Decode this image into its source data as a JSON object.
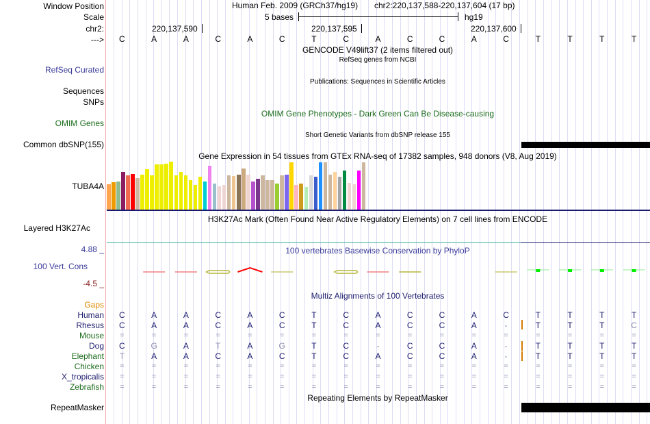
{
  "header": {
    "window_position_label": "Window Position",
    "scale_label": "Scale",
    "chrom_label": "chr2:",
    "strand_label": "--->",
    "assembly_text": "Human Feb. 2009 (GRCh37/hg19)",
    "position_text": "chr2:220,137,588-220,137,604 (17 bp)",
    "scale_text": "5 bases",
    "scale_db": "hg19",
    "coord_ticks": [
      "220,137,590",
      "220,137,595",
      "220,137,600"
    ]
  },
  "sequence": [
    "C",
    "A",
    "A",
    "C",
    "A",
    "C",
    "T",
    "C",
    "A",
    "C",
    "C",
    "A",
    "C",
    "T",
    "T",
    "T",
    "T"
  ],
  "tracks": {
    "gencode_title": "GENCODE V49lift37 (2 items filtered out)",
    "refseq_title": "RefSeq genes from NCBI",
    "refseq_label": "RefSeq Curated",
    "publications_title": "Publications: Sequences in Scientific Articles",
    "sequences_label": "Sequences",
    "snps_label": "SNPs",
    "omim_title": "OMIM Gene Phenotypes - Dark Green Can Be Disease-causing",
    "omim_label": "OMIM Genes",
    "dbsnp_title": "Short Genetic Variants from dbSNP release 155",
    "dbsnp_label": "Common dbSNP(155)",
    "gtex_title": "Gene Expression in 54 tissues from GTEx RNA-seq of 17382 samples, 948 donors (V8, Aug 2019)",
    "gtex_label": "TUBA4A",
    "h3k27ac_title": "H3K27Ac Mark (Often Found Near Active Regulatory Elements) on 7 cell lines from ENCODE",
    "h3k27ac_label": "Layered H3K27Ac",
    "phylop_title": "100 vertebrates Basewise Conservation by PhyloP",
    "phylop_label": "100 Vert. Cons",
    "phylop_max": "4.88 _",
    "phylop_min": "-4.5 _",
    "multiz_title": "Multiz Alignments of 100 Vertebrates",
    "gaps_label": "Gaps",
    "repeat_title": "Repeating Elements by RepeatMasker",
    "repeat_label": "RepeatMasker"
  },
  "gtex_expression": {
    "relative_heights": [
      0.53,
      0.57,
      0.59,
      0.78,
      0.71,
      0.74,
      0.66,
      0.73,
      0.85,
      0.71,
      0.95,
      0.94,
      0.96,
      1.0,
      0.71,
      0.78,
      0.72,
      0.61,
      0.51,
      0.68,
      0.59,
      0.92,
      0.54,
      0.48,
      0.51,
      0.71,
      0.7,
      0.73,
      0.86,
      0.73,
      0.58,
      0.65,
      0.71,
      0.61,
      0.62,
      0.55,
      0.71,
      0.73,
      0.99,
      0.52,
      0.55,
      0.47,
      0.71,
      0.68,
      0.99,
      0.99,
      0.73,
      0.78,
      0.68,
      0.82,
      0.56,
      0.53,
      0.81,
      0.99
    ],
    "colors": [
      "#ffa54f",
      "#ee9a00",
      "#8fbc8f",
      "#8b1c62",
      "#ee6a50",
      "#ff0000",
      "#cdb79e",
      "#eeee00",
      "#eeee00",
      "#eeee00",
      "#eeee00",
      "#eeee00",
      "#eeee00",
      "#eeee00",
      "#eeee00",
      "#eeee00",
      "#eeee00",
      "#eeee00",
      "#eeee00",
      "#eeee00",
      "#00ced1",
      "#ee82ee",
      "#9ac0cd",
      "#eed5d2",
      "#eed5d2",
      "#cdb79e",
      "#eec591",
      "#8b7355",
      "#cdaa7d",
      "#eed5d2",
      "#b452cd",
      "#7a378b",
      "#cdb79e",
      "#cdb79e",
      "#cdb79e",
      "#9acd32",
      "#cdb79e",
      "#7b68ee",
      "#ffd700",
      "#ffb6c1",
      "#cd9b1d",
      "#b4eeb4",
      "#d9d9d9",
      "#3a5fcd",
      "#1e90ff",
      "#cdb79e",
      "#cdb79e",
      "#ffd39b",
      "#a6a6a6",
      "#008b45",
      "#eed5d2",
      "#eed5d2",
      "#ff00ff",
      "#cdb79e"
    ]
  },
  "multiz": {
    "species": [
      {
        "name": "Human",
        "color": "navy",
        "bases": [
          "C",
          "A",
          "A",
          "C",
          "A",
          "C",
          "T",
          "C",
          "A",
          "C",
          "C",
          "A",
          "C",
          "T",
          "T",
          "T",
          "T"
        ]
      },
      {
        "name": "Rhesus",
        "color": "navy",
        "bases": [
          "C",
          "A",
          "A",
          "C",
          "A",
          "C",
          "T",
          "C",
          "A",
          "C",
          "C",
          "A",
          "-",
          "T",
          "T",
          "T",
          "C"
        ]
      },
      {
        "name": "Mouse",
        "color": "green",
        "bases": [
          "=",
          "=",
          "=",
          "=",
          "=",
          "=",
          "=",
          "=",
          "=",
          "=",
          "=",
          "=",
          "=",
          "=",
          "=",
          "=",
          "="
        ]
      },
      {
        "name": "Dog",
        "color": "navy",
        "bases": [
          "C",
          "G",
          "A",
          "T",
          "A",
          "G",
          "T",
          "C",
          "-",
          "C",
          "C",
          "A",
          "-",
          "T",
          "T",
          "T",
          "T"
        ]
      },
      {
        "name": "Elephant",
        "color": "green",
        "bases": [
          "T",
          "A",
          "A",
          "C",
          "A",
          "C",
          "T",
          "C",
          "A",
          "C",
          "C",
          "A",
          "-",
          "T",
          "T",
          "T",
          "T"
        ]
      },
      {
        "name": "Chicken",
        "color": "green",
        "bases": [
          "=",
          "=",
          "=",
          "=",
          "=",
          "=",
          "=",
          "=",
          "=",
          "=",
          "=",
          "=",
          "=",
          "=",
          "=",
          "=",
          "="
        ]
      },
      {
        "name": "X_tropicalis",
        "color": "navy",
        "bases": [
          "=",
          "=",
          "=",
          "=",
          "=",
          "=",
          "=",
          "=",
          "=",
          "=",
          "=",
          "=",
          "=",
          "=",
          "=",
          "=",
          "="
        ]
      },
      {
        "name": "Zebrafish",
        "color": "green",
        "bases": [
          "=",
          "=",
          "=",
          "=",
          "=",
          "=",
          "=",
          "=",
          "=",
          "=",
          "=",
          "=",
          "=",
          "=",
          "=",
          "=",
          "="
        ]
      }
    ]
  }
}
